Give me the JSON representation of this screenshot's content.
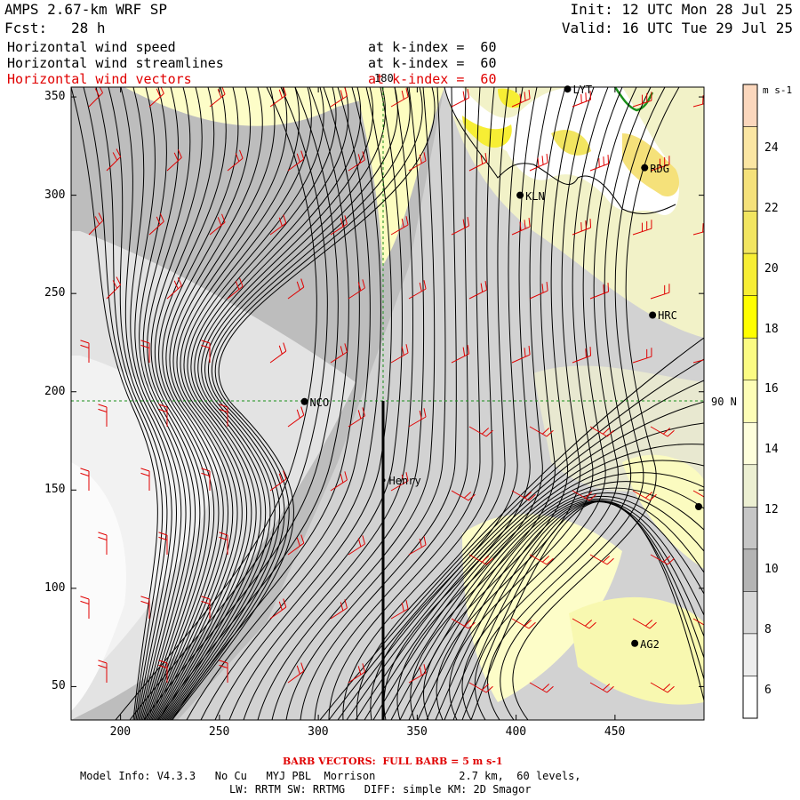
{
  "header": {
    "model": "AMPS 2.67-km WRF SP",
    "fcst_label": "Fcst:",
    "fcst_value": "28 h",
    "init": "Init: 12 UTC Mon 28 Jul 25",
    "valid": "Valid: 16 UTC Tue 29 Jul 25",
    "fields": [
      {
        "name": "Horizontal wind speed",
        "level": "at k-index =  60",
        "color": "#000000"
      },
      {
        "name": "Horizontal wind streamlines",
        "level": "at k-index =  60",
        "color": "#000000"
      },
      {
        "name": "Horizontal wind vectors",
        "level": "at k-index =  60",
        "color": "#e00000"
      }
    ]
  },
  "map": {
    "x_ticks": [
      "200",
      "250",
      "300",
      "350",
      "400",
      "450"
    ],
    "y_ticks": [
      "350",
      "300",
      "250",
      "200",
      "150",
      "100",
      "50"
    ],
    "grid_labels": {
      "meridian": "180",
      "parallel": "90 N"
    },
    "stations": [
      {
        "name": "LYT"
      },
      {
        "name": "RDG"
      },
      {
        "name": "KLN"
      },
      {
        "name": "HRC"
      },
      {
        "name": "NCO"
      },
      {
        "name": "Henry"
      },
      {
        "name": "AG2"
      }
    ],
    "colors": {
      "barb": "#e00000",
      "streamline": "#000000",
      "grid": "#1a8f1a",
      "coast": "#1a8f1a"
    }
  },
  "colorbar": {
    "units": "m s-1",
    "labels": [
      "24",
      "22",
      "20",
      "18",
      "16",
      "14",
      "12",
      "10",
      "8",
      "6"
    ],
    "colors": [
      "#fbd7bd",
      "#fbe6a3",
      "#f5e17a",
      "#f2e560",
      "#f7ee34",
      "#fffe00",
      "#fbfb83",
      "#fdfdb6",
      "#fefedc",
      "#ecefd2",
      "#c6c6c6",
      "#b4b4b4",
      "#d8d8d8",
      "#eeeeee",
      "#ffffff"
    ]
  },
  "footer": {
    "barb_note": "BARB VECTORS:  FULL BARB = 5 m s-1",
    "model_info_1": "Model Info: V4.3.3   No Cu   MYJ PBL  Morrison             2.7 km,  60 levels,",
    "model_info_2": "LW: RRTM SW: RRTMG   DIFF: simple KM: 2D Smagor"
  }
}
